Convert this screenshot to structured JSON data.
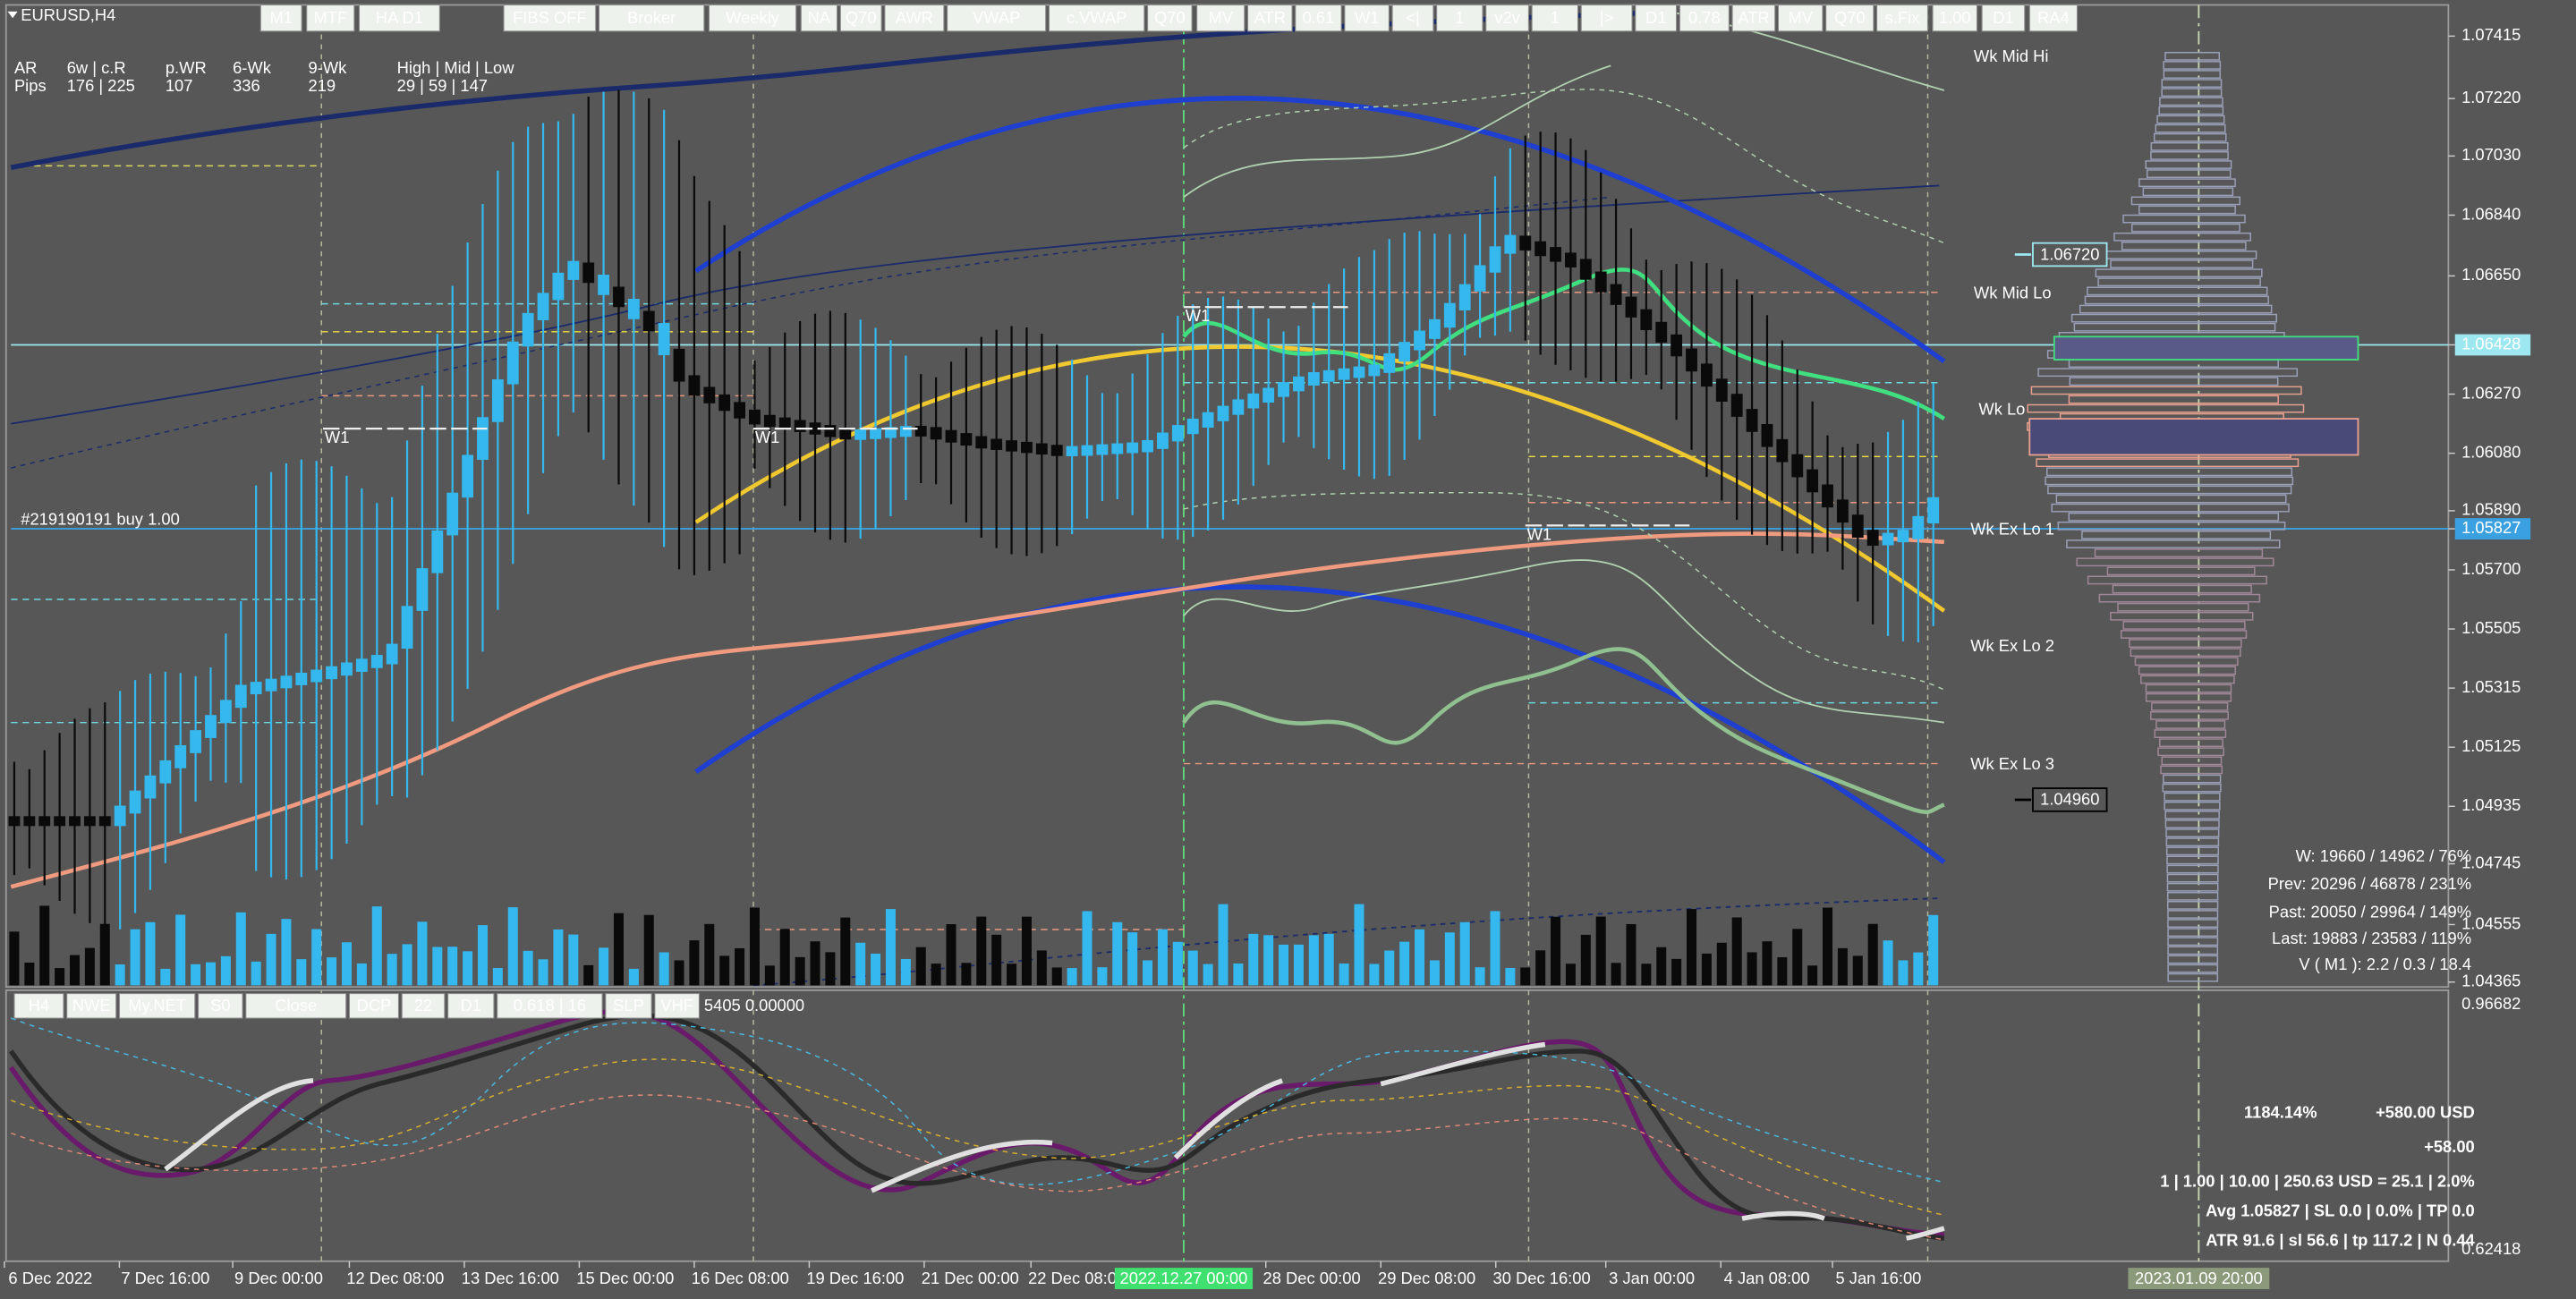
{
  "symbol": "EURUSD,H4",
  "toolbar": [
    "M1",
    "MTF",
    "HA D1",
    "FIBS OFF",
    "Broker",
    "Weekly",
    "NA",
    "Q70",
    "AWR",
    "VWAP",
    "c.VWAP",
    "Q70",
    "MV",
    "ATR",
    "0.61",
    "W1",
    "<|",
    "1",
    "v2v",
    "1",
    "|>",
    "D1",
    "0.78",
    "ATR",
    "MV",
    "Q70",
    "s.Fix",
    "1.00",
    "D1",
    "RA4"
  ],
  "stats": {
    "headers": [
      "AR",
      "6w | c.R",
      "p.WR",
      "6-Wk",
      "9-Wk",
      "High | Mid | Low"
    ],
    "row_label": "Pips",
    "values": [
      "176 | 225",
      "107",
      "336",
      "219",
      "29 | 59 | 147"
    ]
  },
  "price_axis": [
    "1.07415",
    "1.07220",
    "1.07030",
    "1.06840",
    "1.06650",
    "1.06428",
    "1.06270",
    "1.06080",
    "1.05890",
    "1.05827",
    "1.05700",
    "1.05505",
    "1.05315",
    "1.05125",
    "1.04935",
    "1.04745",
    "1.04555",
    "1.04365"
  ],
  "level_labels": [
    "Wk Mid Hi",
    "Wk Mid Lo",
    "Wk Lo",
    "Wk Ex Lo 1",
    "Wk Ex Lo 2",
    "Wk Ex Lo 3"
  ],
  "week_markers": [
    "W1",
    "W1",
    "W1",
    "W1"
  ],
  "order_label": "#219190191 buy 1.00",
  "price_tags": [
    "1.06720",
    "1.04960"
  ],
  "volume_stats": [
    "W: 19660 / 14962 / 76%",
    "Prev: 20296 / 46878 / 231%",
    "Past: 20050 / 29964 / 149%",
    "Last: 19883 / 23583 / 119%",
    "V ( M1 ): 2.2 / 0.3 / 18.4"
  ],
  "sub_toolbar": [
    "H4",
    "NWE",
    "My.NET",
    "S0",
    "Close",
    "DCP",
    "22",
    "D1",
    "0.618 | 16",
    "SLP",
    "VHF"
  ],
  "sub_info": "5405 0.00000",
  "sub_axis": [
    "0.96682",
    "0.62418"
  ],
  "trade_panel": {
    "percent": "1184.14%",
    "profit_usd": "+580.00 USD",
    "profit_pips": "+58.00",
    "lines": [
      "1 | 1.00 | 10.00 | 250.63 USD = 25.1 | 2.0%",
      "Avg 1.05827 | SL 0.0 | 0.0% | TP 0.0",
      "ATR 91.6 | sl 56.6 | tp 117.2 | N 0.44"
    ]
  },
  "time_axis": [
    "6 Dec 2022",
    "7 Dec 16:00",
    "9 Dec 00:00",
    "12 Dec 08:00",
    "13 Dec 16:00",
    "15 Dec 00:00",
    "16 Dec 08:00",
    "19 Dec 16:00",
    "21 Dec 00:00",
    "22 Dec 08:00",
    "28 Dec 00:00",
    "29 Dec 08:00",
    "30 Dec 16:00",
    "3 Jan 00:00",
    "4 Jan 08:00",
    "5 Jan 16:00"
  ],
  "time_cursor": "2022.12.27 00:00",
  "time_end": "2023.01.09 20:00"
}
